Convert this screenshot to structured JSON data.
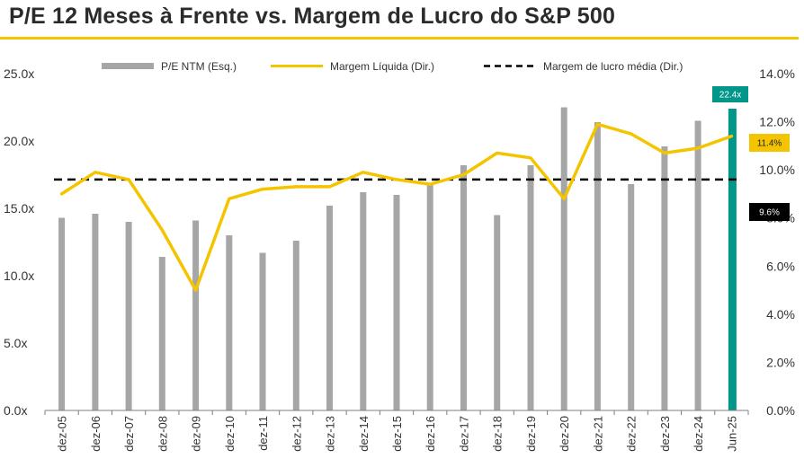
{
  "title": "P/E 12 Meses à Frente vs. Margem de Lucro do S&P 500",
  "chart_data": {
    "type": "bar",
    "categories": [
      "dez-05",
      "dez-06",
      "dez-07",
      "dez-08",
      "dez-09",
      "dez-10",
      "dez-11",
      "dez-12",
      "dez-13",
      "dez-14",
      "dez-15",
      "dez-16",
      "dez-17",
      "dez-18",
      "dez-19",
      "dez-20",
      "dez-21",
      "dez-22",
      "dez-23",
      "dez-24",
      "Jun-25"
    ],
    "series": [
      {
        "name": "P/E NTM (Esq.)",
        "kind": "bar",
        "axis": "left",
        "color": "#a6a6a6",
        "values": [
          14.3,
          14.6,
          14.0,
          11.4,
          14.1,
          13.0,
          11.7,
          12.6,
          15.2,
          16.2,
          16.0,
          16.9,
          18.2,
          14.5,
          18.2,
          22.5,
          21.4,
          16.8,
          19.6,
          21.5,
          22.4
        ]
      },
      {
        "name": "Margem Líquida (Dir.)",
        "kind": "line",
        "axis": "right",
        "color": "#f5c400",
        "values": [
          9.0,
          9.9,
          9.6,
          7.5,
          5.0,
          8.8,
          9.2,
          9.3,
          9.3,
          9.9,
          9.6,
          9.4,
          9.8,
          10.7,
          10.5,
          8.8,
          11.9,
          11.5,
          10.7,
          10.9,
          11.4
        ]
      },
      {
        "name": "Margem de lucro média (Dir.)",
        "kind": "dashed",
        "axis": "right",
        "color": "#000000",
        "value": 9.6
      }
    ],
    "y_left": {
      "min": 0,
      "max": 25,
      "ticks": [
        "0.0x",
        "5.0x",
        "10.0x",
        "15.0x",
        "20.0x",
        "25.0x"
      ]
    },
    "y_right": {
      "min": 0,
      "max": 14,
      "ticks": [
        "0.0%",
        "2.0%",
        "4.0%",
        "6.0%",
        "8.0%",
        "10.0%",
        "12.0%",
        "14.0%"
      ]
    },
    "highlight_color": "#00968a",
    "tags": {
      "pe_last": {
        "label": "22.4x",
        "bg": "#00968a",
        "fg": "#ffffff"
      },
      "margin_last": {
        "label": "11.4%",
        "bg": "#f5c400",
        "fg": "#222222"
      },
      "margin_avg": {
        "label": "9.6%",
        "bg": "#000000",
        "fg": "#ffffff"
      }
    },
    "legend_position": "top",
    "grid": false
  }
}
